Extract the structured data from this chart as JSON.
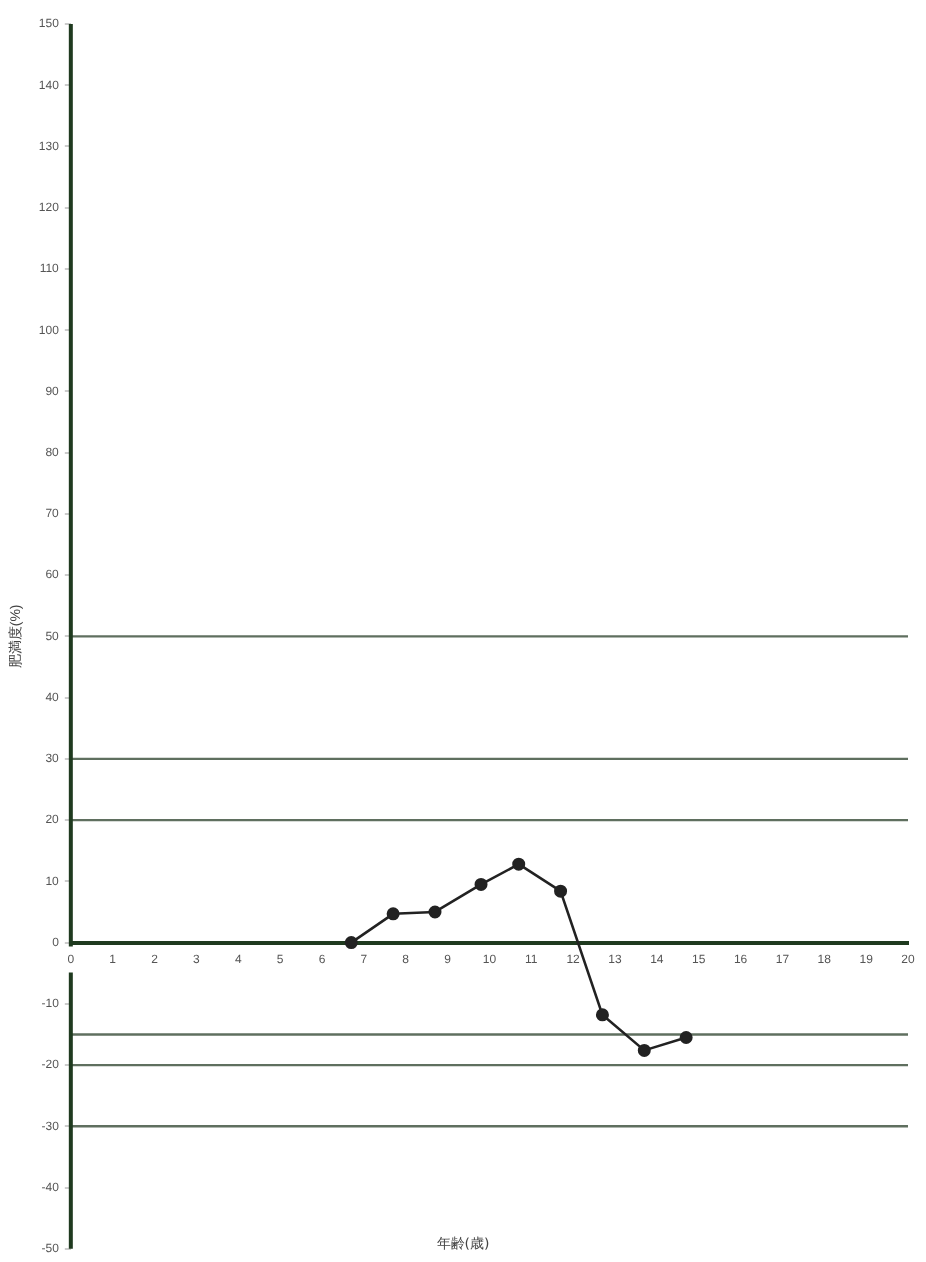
{
  "chart_data": {
    "type": "line",
    "xlabel": "年齢(歳)",
    "ylabel": "肥満度(%)",
    "x": [
      6.7,
      7.7,
      8.7,
      9.8,
      10.7,
      11.7,
      12.7,
      13.7,
      14.7
    ],
    "series": [
      {
        "color": "#222222",
        "values": [
          0,
          4.7,
          5,
          9.5,
          12.8,
          8.4,
          -11.8,
          -17.6,
          -15.5
        ]
      }
    ],
    "xlim": [
      0,
      20
    ],
    "xticks": [
      0,
      1,
      2,
      3,
      4,
      5,
      6,
      7,
      8,
      9,
      10,
      11,
      12,
      13,
      14,
      15,
      16,
      17,
      18,
      19,
      20
    ],
    "ylim": [
      -50,
      150
    ],
    "yticks": [
      -50,
      -40,
      -30,
      -20,
      -10,
      0,
      10,
      20,
      30,
      40,
      50,
      60,
      70,
      80,
      90,
      100,
      110,
      120,
      130,
      140,
      150
    ],
    "ref_lines": [
      {
        "axis": "y",
        "value": 50,
        "color": "#5f6f5f"
      },
      {
        "axis": "y",
        "value": 30,
        "color": "#5f6f5f"
      },
      {
        "axis": "y",
        "value": 20,
        "color": "#5f6f5f"
      },
      {
        "axis": "y",
        "value": -15,
        "color": "#5f6f5f"
      },
      {
        "axis": "y",
        "value": -20,
        "color": "#5f6f5f"
      },
      {
        "axis": "y",
        "value": -30,
        "color": "#5f6f5f"
      }
    ],
    "grid": false,
    "legend": false,
    "marker": "circle",
    "line_style": "solid"
  }
}
